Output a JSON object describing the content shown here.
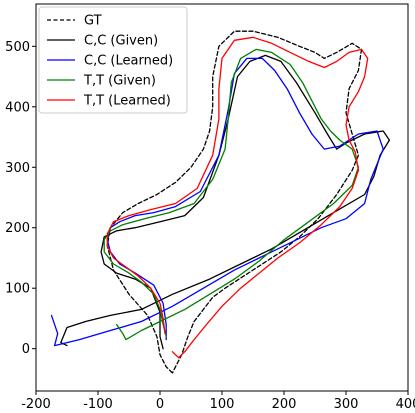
{
  "chart_data": {
    "type": "line",
    "title": "",
    "xlabel": "",
    "ylabel": "",
    "xlim": [
      -200,
      400
    ],
    "ylim": [
      -70,
      570
    ],
    "xticks": [
      -200,
      -100,
      0,
      100,
      200,
      300,
      400
    ],
    "yticks": [
      0,
      100,
      200,
      300,
      400,
      500
    ],
    "grid": false,
    "legend_position": "upper-left",
    "series": [
      {
        "name": "GT",
        "color": "#000000",
        "dash": true,
        "points": [
          [
            20,
            -40
          ],
          [
            10,
            -30
          ],
          [
            0,
            -10
          ],
          [
            -5,
            20
          ],
          [
            -20,
            55
          ],
          [
            -50,
            90
          ],
          [
            -75,
            130
          ],
          [
            -85,
            170
          ],
          [
            -80,
            200
          ],
          [
            -60,
            225
          ],
          [
            -35,
            240
          ],
          [
            -5,
            255
          ],
          [
            25,
            275
          ],
          [
            50,
            300
          ],
          [
            70,
            330
          ],
          [
            80,
            360
          ],
          [
            85,
            400
          ],
          [
            85,
            450
          ],
          [
            95,
            500
          ],
          [
            120,
            525
          ],
          [
            150,
            525
          ],
          [
            190,
            515
          ],
          [
            225,
            500
          ],
          [
            250,
            490
          ],
          [
            265,
            480
          ],
          [
            285,
            490
          ],
          [
            310,
            505
          ],
          [
            325,
            495
          ],
          [
            320,
            460
          ],
          [
            305,
            430
          ],
          [
            300,
            390
          ],
          [
            310,
            355
          ],
          [
            320,
            320
          ],
          [
            310,
            295
          ],
          [
            285,
            255
          ],
          [
            255,
            215
          ],
          [
            225,
            185
          ],
          [
            195,
            160
          ],
          [
            165,
            140
          ],
          [
            135,
            120
          ],
          [
            105,
            100
          ],
          [
            85,
            85
          ],
          [
            70,
            65
          ],
          [
            55,
            45
          ],
          [
            45,
            20
          ],
          [
            35,
            -10
          ],
          [
            25,
            -30
          ],
          [
            20,
            -40
          ]
        ]
      },
      {
        "name": "C,C (Given)",
        "color": "#000000",
        "dash": false,
        "points": [
          [
            -150,
            5
          ],
          [
            -160,
            10
          ],
          [
            -150,
            35
          ],
          [
            -120,
            45
          ],
          [
            -80,
            55
          ],
          [
            -30,
            65
          ],
          [
            20,
            90
          ],
          [
            80,
            115
          ],
          [
            130,
            140
          ],
          [
            180,
            165
          ],
          [
            230,
            195
          ],
          [
            280,
            225
          ],
          [
            330,
            255
          ],
          [
            345,
            285
          ],
          [
            355,
            320
          ],
          [
            370,
            345
          ],
          [
            360,
            360
          ],
          [
            330,
            355
          ],
          [
            300,
            340
          ],
          [
            285,
            330
          ],
          [
            270,
            355
          ],
          [
            250,
            390
          ],
          [
            220,
            440
          ],
          [
            195,
            475
          ],
          [
            170,
            485
          ],
          [
            145,
            475
          ],
          [
            125,
            450
          ],
          [
            110,
            380
          ],
          [
            95,
            320
          ],
          [
            70,
            250
          ],
          [
            40,
            220
          ],
          [
            0,
            210
          ],
          [
            -40,
            200
          ],
          [
            -70,
            195
          ],
          [
            -90,
            185
          ],
          [
            -95,
            160
          ],
          [
            -90,
            140
          ],
          [
            -70,
            125
          ],
          [
            -40,
            115
          ],
          [
            -15,
            100
          ],
          [
            0,
            60
          ],
          [
            0,
            20
          ],
          [
            5,
            0
          ]
        ]
      },
      {
        "name": "C,C (Learned)",
        "color": "#0000ff",
        "dash": false,
        "points": [
          [
            -175,
            55
          ],
          [
            -165,
            25
          ],
          [
            -170,
            5
          ],
          [
            -130,
            15
          ],
          [
            -80,
            30
          ],
          [
            -30,
            45
          ],
          [
            20,
            70
          ],
          [
            70,
            100
          ],
          [
            120,
            130
          ],
          [
            170,
            155
          ],
          [
            220,
            180
          ],
          [
            260,
            200
          ],
          [
            300,
            215
          ],
          [
            330,
            240
          ],
          [
            340,
            280
          ],
          [
            360,
            330
          ],
          [
            350,
            360
          ],
          [
            320,
            355
          ],
          [
            290,
            335
          ],
          [
            265,
            330
          ],
          [
            245,
            355
          ],
          [
            225,
            390
          ],
          [
            205,
            430
          ],
          [
            185,
            460
          ],
          [
            165,
            480
          ],
          [
            140,
            480
          ],
          [
            120,
            455
          ],
          [
            110,
            395
          ],
          [
            95,
            320
          ],
          [
            65,
            260
          ],
          [
            25,
            235
          ],
          [
            -10,
            225
          ],
          [
            -40,
            220
          ],
          [
            -65,
            210
          ],
          [
            -80,
            200
          ],
          [
            -85,
            180
          ],
          [
            -80,
            160
          ],
          [
            -65,
            140
          ],
          [
            -40,
            125
          ],
          [
            -10,
            105
          ],
          [
            5,
            75
          ],
          [
            10,
            40
          ],
          [
            10,
            15
          ]
        ]
      },
      {
        "name": "T,T (Given)",
        "color": "#008000",
        "dash": false,
        "points": [
          [
            -70,
            40
          ],
          [
            -60,
            25
          ],
          [
            -55,
            15
          ],
          [
            -30,
            30
          ],
          [
            0,
            45
          ],
          [
            40,
            65
          ],
          [
            80,
            90
          ],
          [
            120,
            115
          ],
          [
            160,
            145
          ],
          [
            200,
            180
          ],
          [
            240,
            210
          ],
          [
            280,
            240
          ],
          [
            310,
            270
          ],
          [
            320,
            300
          ],
          [
            310,
            330
          ],
          [
            290,
            345
          ],
          [
            275,
            360
          ],
          [
            260,
            380
          ],
          [
            245,
            410
          ],
          [
            230,
            440
          ],
          [
            210,
            470
          ],
          [
            180,
            490
          ],
          [
            155,
            495
          ],
          [
            130,
            480
          ],
          [
            115,
            440
          ],
          [
            110,
            380
          ],
          [
            105,
            330
          ],
          [
            85,
            280
          ],
          [
            55,
            240
          ],
          [
            15,
            225
          ],
          [
            -25,
            215
          ],
          [
            -60,
            205
          ],
          [
            -80,
            195
          ],
          [
            -90,
            180
          ],
          [
            -90,
            160
          ],
          [
            -75,
            140
          ],
          [
            -50,
            125
          ],
          [
            -30,
            110
          ],
          [
            -10,
            90
          ],
          [
            0,
            65
          ],
          [
            5,
            40
          ],
          [
            10,
            20
          ]
        ]
      },
      {
        "name": "T,T (Learned)",
        "color": "#ff0000",
        "dash": false,
        "points": [
          [
            20,
            -5
          ],
          [
            25,
            -10
          ],
          [
            30,
            -15
          ],
          [
            40,
            -5
          ],
          [
            55,
            15
          ],
          [
            75,
            40
          ],
          [
            100,
            70
          ],
          [
            130,
            100
          ],
          [
            160,
            125
          ],
          [
            190,
            150
          ],
          [
            225,
            175
          ],
          [
            260,
            205
          ],
          [
            290,
            235
          ],
          [
            310,
            265
          ],
          [
            320,
            295
          ],
          [
            315,
            325
          ],
          [
            305,
            345
          ],
          [
            300,
            370
          ],
          [
            305,
            400
          ],
          [
            320,
            425
          ],
          [
            330,
            450
          ],
          [
            335,
            480
          ],
          [
            325,
            495
          ],
          [
            305,
            490
          ],
          [
            285,
            475
          ],
          [
            265,
            465
          ],
          [
            240,
            475
          ],
          [
            210,
            490
          ],
          [
            180,
            505
          ],
          [
            150,
            515
          ],
          [
            120,
            510
          ],
          [
            100,
            480
          ],
          [
            95,
            430
          ],
          [
            95,
            380
          ],
          [
            85,
            320
          ],
          [
            60,
            265
          ],
          [
            25,
            240
          ],
          [
            -15,
            230
          ],
          [
            -50,
            220
          ],
          [
            -75,
            210
          ],
          [
            -85,
            190
          ],
          [
            -85,
            170
          ],
          [
            -75,
            150
          ],
          [
            -55,
            135
          ],
          [
            -35,
            120
          ],
          [
            -15,
            100
          ],
          [
            0,
            75
          ],
          [
            5,
            50
          ],
          [
            8,
            25
          ]
        ]
      }
    ]
  }
}
